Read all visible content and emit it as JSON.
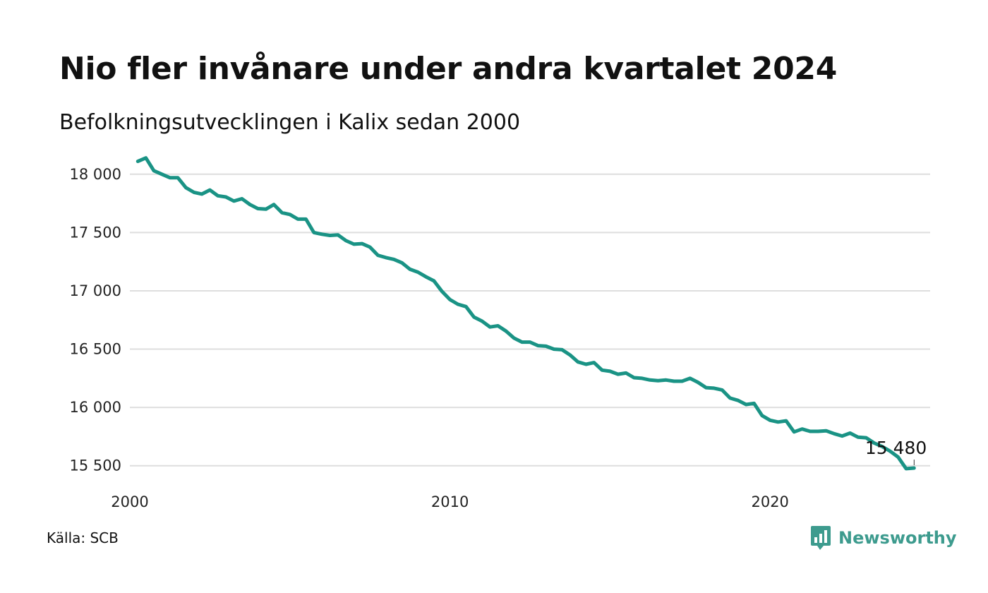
{
  "header": {
    "title": "Nio fler invånare under andra kvartalet 2024",
    "subtitle": "Befolkningsutvecklingen i Kalix sedan 2000"
  },
  "footer": {
    "source": "Källa: SCB",
    "brand": "Newsworthy"
  },
  "chart_data": {
    "type": "line",
    "title": "Nio fler invånare under andra kvartalet 2024",
    "subtitle": "Befolkningsutvecklingen i Kalix sedan 2000",
    "xlabel": "",
    "ylabel": "",
    "x_unit": "year (quarterly, decimal)",
    "xlim": [
      2000,
      2025
    ],
    "ylim": [
      15450,
      18150
    ],
    "x_ticks": [
      2000,
      2010,
      2020
    ],
    "x_tick_labels": [
      "2000",
      "2010",
      "2020"
    ],
    "y_ticks": [
      15500,
      16000,
      16500,
      17000,
      17500,
      18000
    ],
    "y_tick_labels": [
      "15 500",
      "16 000",
      "16 500",
      "17 000",
      "17 500",
      "18 000"
    ],
    "grid": "horizontal",
    "line_color": "#1a9385",
    "end_label": "15 480",
    "series": [
      {
        "x": [
          2000.25,
          2000.5,
          2000.75,
          2001.0,
          2001.25,
          2001.5,
          2001.75,
          2002.0,
          2002.25,
          2002.5,
          2002.75,
          2003.0,
          2003.25,
          2003.5,
          2003.75,
          2004.0,
          2004.25,
          2004.5,
          2004.75,
          2005.0,
          2005.25,
          2005.5,
          2005.75,
          2006.0,
          2006.25,
          2006.5,
          2006.75,
          2007.0,
          2007.25,
          2007.5,
          2007.75,
          2008.0,
          2008.25,
          2008.5,
          2008.75,
          2009.0,
          2009.25,
          2009.5,
          2009.75,
          2010.0,
          2010.25,
          2010.5,
          2010.75,
          2011.0,
          2011.25,
          2011.5,
          2011.75,
          2012.0,
          2012.25,
          2012.5,
          2012.75,
          2013.0,
          2013.25,
          2013.5,
          2013.75,
          2014.0,
          2014.25,
          2014.5,
          2014.75,
          2015.0,
          2015.25,
          2015.5,
          2015.75,
          2016.0,
          2016.25,
          2016.5,
          2016.75,
          2017.0,
          2017.25,
          2017.5,
          2017.75,
          2018.0,
          2018.25,
          2018.5,
          2018.75,
          2019.0,
          2019.25,
          2019.5,
          2019.75,
          2020.0,
          2020.25,
          2020.5,
          2020.75,
          2021.0,
          2021.25,
          2021.5,
          2021.75,
          2022.0,
          2022.25,
          2022.5,
          2022.75,
          2023.0,
          2023.25,
          2023.5,
          2023.75,
          2024.0,
          2024.25,
          2024.5
        ],
        "y": [
          18110,
          18140,
          18030,
          18000,
          17970,
          17970,
          17885,
          17845,
          17830,
          17865,
          17815,
          17805,
          17770,
          17790,
          17740,
          17705,
          17700,
          17740,
          17670,
          17655,
          17615,
          17615,
          17500,
          17485,
          17475,
          17480,
          17430,
          17400,
          17405,
          17375,
          17305,
          17285,
          17270,
          17240,
          17185,
          17160,
          17120,
          17085,
          16995,
          16925,
          16885,
          16865,
          16775,
          16740,
          16690,
          16700,
          16655,
          16595,
          16560,
          16560,
          16530,
          16525,
          16500,
          16495,
          16450,
          16390,
          16370,
          16385,
          16320,
          16310,
          16285,
          16295,
          16255,
          16250,
          16235,
          16230,
          16235,
          16225,
          16225,
          16250,
          16215,
          16170,
          16165,
          16150,
          16080,
          16060,
          16025,
          16035,
          15930,
          15890,
          15875,
          15885,
          15790,
          15815,
          15795,
          15795,
          15800,
          15775,
          15755,
          15780,
          15745,
          15740,
          15695,
          15665,
          15625,
          15575,
          15475,
          15480
        ]
      }
    ]
  }
}
